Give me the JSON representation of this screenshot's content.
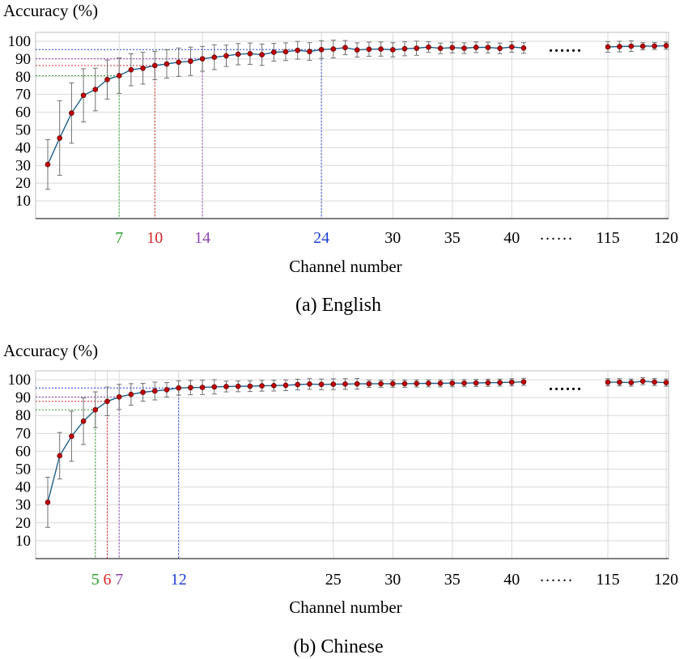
{
  "chart_data": [
    {
      "type": "line",
      "title": "",
      "caption": "(a) English",
      "xlabel": "Channel number",
      "ylabel": "Accuracy (%)",
      "ylim": [
        0,
        105
      ],
      "yticks": [
        "10",
        "20",
        "30",
        "40",
        "50",
        "60",
        "70",
        "80",
        "90",
        "100"
      ],
      "xticks": [
        {
          "x": 7,
          "label": "7",
          "color": "#2ca02c"
        },
        {
          "x": 10,
          "label": "10",
          "color": "#d62728"
        },
        {
          "x": 14,
          "label": "14",
          "color": "#8e44ad"
        },
        {
          "x": 24,
          "label": "24",
          "color": "#1f3fd6"
        },
        {
          "x": 30,
          "label": "30",
          "color": "#000000"
        },
        {
          "x": 35,
          "label": "35",
          "color": "#000000"
        },
        {
          "x": 40,
          "label": "40",
          "color": "#000000"
        },
        {
          "x": 115,
          "label": "115",
          "color": "#000000"
        },
        {
          "x": 120,
          "label": "120",
          "color": "#000000"
        }
      ],
      "break_marker": "......",
      "grid": true,
      "line_color": "#1f5f8b",
      "marker_color": "#c00000",
      "highlights": [
        {
          "x": 7,
          "y": 80.6,
          "color": "#2ca02c"
        },
        {
          "x": 10,
          "y": 86.3,
          "color": "#d62728"
        },
        {
          "x": 14,
          "y": 90.1,
          "color": "#8e44ad"
        },
        {
          "x": 24,
          "y": 95.3,
          "color": "#1f3fd6"
        }
      ],
      "series": [
        {
          "x": [
            1,
            2,
            3,
            4,
            5,
            6,
            7,
            8,
            9,
            10,
            11,
            12,
            13,
            14,
            15,
            16,
            17,
            18,
            19,
            20,
            21,
            22,
            23,
            24,
            25,
            26,
            27,
            28,
            29,
            30,
            31,
            32,
            33,
            34,
            35,
            36,
            37,
            38,
            39,
            40,
            41,
            115,
            116,
            117,
            118,
            119,
            120
          ],
          "y": [
            30.5,
            45.4,
            59.5,
            69.5,
            72.8,
            78.4,
            80.6,
            83.9,
            84.8,
            86.3,
            87.2,
            88.2,
            88.7,
            90.1,
            91.0,
            91.8,
            92.7,
            93.0,
            92.4,
            93.8,
            94.1,
            94.9,
            94.2,
            95.3,
            95.6,
            96.4,
            95.1,
            95.5,
            95.6,
            95.2,
            95.8,
            96.1,
            96.7,
            96.0,
            96.4,
            96.1,
            96.6,
            96.5,
            96.0,
            96.8,
            96.2,
            96.8,
            97.0,
            97.2,
            97.2,
            97.3,
            97.5
          ],
          "err": [
            14,
            21,
            17,
            15,
            12,
            11,
            10,
            9,
            9,
            8,
            8,
            8,
            8,
            7,
            7,
            6,
            6,
            6,
            6,
            5,
            5,
            5,
            5,
            5,
            5,
            4,
            4,
            4,
            4,
            4,
            4,
            4,
            3,
            3,
            3,
            3,
            3,
            3,
            3,
            3,
            3,
            3,
            3,
            3,
            2,
            2,
            2
          ]
        }
      ]
    },
    {
      "type": "line",
      "title": "",
      "caption": "(b) Chinese",
      "xlabel": "Channel number",
      "ylabel": "Accuracy (%)",
      "ylim": [
        0,
        105
      ],
      "yticks": [
        "10",
        "20",
        "30",
        "40",
        "50",
        "60",
        "70",
        "80",
        "90",
        "100"
      ],
      "xticks": [
        {
          "x": 5,
          "label": "5",
          "color": "#2ca02c"
        },
        {
          "x": 6,
          "label": "6",
          "color": "#d62728"
        },
        {
          "x": 7,
          "label": "7",
          "color": "#8e44ad"
        },
        {
          "x": 12,
          "label": "12",
          "color": "#1f3fd6"
        },
        {
          "x": 25,
          "label": "25",
          "color": "#000000"
        },
        {
          "x": 30,
          "label": "30",
          "color": "#000000"
        },
        {
          "x": 35,
          "label": "35",
          "color": "#000000"
        },
        {
          "x": 40,
          "label": "40",
          "color": "#000000"
        },
        {
          "x": 115,
          "label": "115",
          "color": "#000000"
        },
        {
          "x": 120,
          "label": "120",
          "color": "#000000"
        }
      ],
      "break_marker": "......",
      "grid": true,
      "line_color": "#1f5f8b",
      "marker_color": "#c00000",
      "highlights": [
        {
          "x": 5,
          "y": 83.2,
          "color": "#2ca02c"
        },
        {
          "x": 6,
          "y": 87.9,
          "color": "#d62728"
        },
        {
          "x": 7,
          "y": 90.4,
          "color": "#8e44ad"
        },
        {
          "x": 12,
          "y": 95.4,
          "color": "#1f3fd6"
        }
      ],
      "series": [
        {
          "x": [
            1,
            2,
            3,
            4,
            5,
            6,
            7,
            8,
            9,
            10,
            11,
            12,
            13,
            14,
            15,
            16,
            17,
            18,
            19,
            20,
            21,
            22,
            23,
            24,
            25,
            26,
            27,
            28,
            29,
            30,
            31,
            32,
            33,
            34,
            35,
            36,
            37,
            38,
            39,
            40,
            41,
            115,
            116,
            117,
            118,
            119,
            120
          ],
          "y": [
            31.5,
            57.5,
            68.4,
            76.8,
            83.2,
            87.9,
            90.4,
            91.8,
            93.0,
            93.7,
            94.4,
            95.4,
            95.6,
            95.7,
            96.0,
            96.2,
            96.3,
            96.4,
            96.6,
            96.7,
            96.9,
            97.3,
            97.6,
            97.4,
            97.5,
            97.6,
            97.7,
            97.7,
            97.8,
            97.8,
            97.8,
            97.9,
            98.0,
            98.0,
            98.1,
            98.1,
            98.2,
            98.3,
            98.4,
            98.6,
            98.8,
            98.6,
            98.6,
            98.4,
            99.2,
            98.7,
            98.4
          ],
          "err": [
            14,
            13,
            14,
            13,
            10,
            8,
            7,
            6,
            5,
            5,
            4,
            4,
            4,
            4,
            4,
            3,
            3,
            3,
            3,
            3,
            3,
            3,
            3,
            3,
            3,
            3,
            3,
            2,
            2,
            2,
            2,
            2,
            2,
            2,
            2,
            2,
            2,
            2,
            2,
            2,
            2,
            2,
            2,
            2,
            2,
            2,
            2
          ]
        }
      ]
    }
  ]
}
